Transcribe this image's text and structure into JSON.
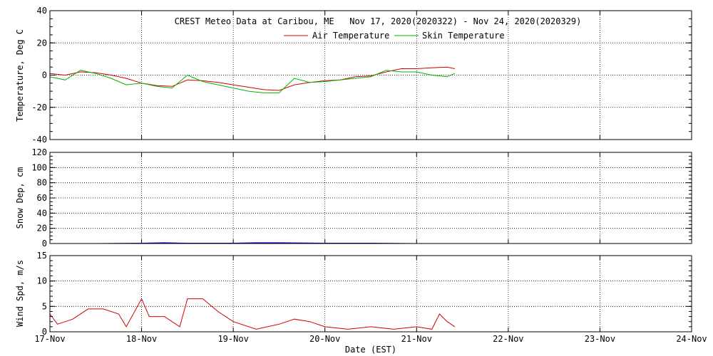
{
  "title": "CREST Meteo Data at Caribou, ME   Nov 17, 2020(2020322) - Nov 24, 2020(2020329)",
  "xlabel": "Date (EST)",
  "colors": {
    "air": "#d40000",
    "skin": "#00b400",
    "snow": "#0000cc",
    "wind": "#d40000"
  },
  "chart_data": [
    {
      "type": "line",
      "title": "CREST Meteo Data at Caribou, ME   Nov 17, 2020(2020322) - Nov 24, 2020(2020329)",
      "xlabel": "",
      "ylabel": "Temperature, Deg C",
      "xlim": [
        "2020-11-17",
        "2020-11-24"
      ],
      "ylim": [
        -40,
        40
      ],
      "yticks": [
        "40",
        "20",
        "0",
        "-20",
        "-40"
      ],
      "legend_position": "top-center",
      "grid": true,
      "series": [
        {
          "name": "Air Temperature",
          "color": "#d40000",
          "x": [
            "2020-11-17 00:00",
            "2020-11-17 04:00",
            "2020-11-17 08:00",
            "2020-11-17 12:00",
            "2020-11-17 16:00",
            "2020-11-17 20:00",
            "2020-11-18 00:00",
            "2020-11-18 04:00",
            "2020-11-18 08:00",
            "2020-11-18 12:00",
            "2020-11-18 16:00",
            "2020-11-18 20:00",
            "2020-11-19 00:00",
            "2020-11-19 04:00",
            "2020-11-19 08:00",
            "2020-11-19 12:00",
            "2020-11-19 16:00",
            "2020-11-19 20:00",
            "2020-11-20 00:00",
            "2020-11-20 04:00",
            "2020-11-20 08:00",
            "2020-11-20 12:00",
            "2020-11-20 16:00",
            "2020-11-20 20:00",
            "2020-11-21 00:00",
            "2020-11-21 04:00",
            "2020-11-21 08:00",
            "2020-11-21 10:00"
          ],
          "y": [
            1,
            0,
            2,
            1.5,
            0,
            -2,
            -5,
            -6.5,
            -7,
            -3,
            -3.5,
            -4.5,
            -6,
            -7.5,
            -9,
            -9.5,
            -6,
            -4.5,
            -3.5,
            -3,
            -1,
            -0.5,
            2,
            4,
            4,
            4.5,
            5,
            4
          ]
        },
        {
          "name": "Skin Temperature",
          "color": "#00b400",
          "x": [
            "2020-11-17 00:00",
            "2020-11-17 04:00",
            "2020-11-17 08:00",
            "2020-11-17 12:00",
            "2020-11-17 16:00",
            "2020-11-17 20:00",
            "2020-11-18 00:00",
            "2020-11-18 04:00",
            "2020-11-18 08:00",
            "2020-11-18 12:00",
            "2020-11-18 16:00",
            "2020-11-18 20:00",
            "2020-11-19 00:00",
            "2020-11-19 04:00",
            "2020-11-19 08:00",
            "2020-11-19 12:00",
            "2020-11-19 16:00",
            "2020-11-19 20:00",
            "2020-11-20 00:00",
            "2020-11-20 04:00",
            "2020-11-20 08:00",
            "2020-11-20 12:00",
            "2020-11-20 16:00",
            "2020-11-20 20:00",
            "2020-11-21 00:00",
            "2020-11-21 04:00",
            "2020-11-21 08:00",
            "2020-11-21 10:00"
          ],
          "y": [
            -1,
            -3,
            3,
            1,
            -2,
            -6,
            -5,
            -7,
            -8,
            0,
            -4,
            -6,
            -8,
            -10,
            -11,
            -11,
            -2,
            -4.5,
            -4,
            -3,
            -2,
            -1,
            3,
            2,
            2,
            0,
            -1,
            1
          ]
        }
      ]
    },
    {
      "type": "area",
      "ylabel": "Snow Dep, cm",
      "xlim": [
        "2020-11-17",
        "2020-11-24"
      ],
      "ylim": [
        0,
        120
      ],
      "yticks": [
        "120",
        "100",
        "80",
        "60",
        "40",
        "20",
        "0"
      ],
      "grid": true,
      "series": [
        {
          "color": "#0000cc",
          "x": [
            "2020-11-17 00:00",
            "2020-11-17 12:00",
            "2020-11-18 00:00",
            "2020-11-18 06:00",
            "2020-11-18 12:00",
            "2020-11-19 00:00",
            "2020-11-19 06:00",
            "2020-11-19 12:00",
            "2020-11-20 00:00",
            "2020-11-20 12:00",
            "2020-11-21 00:00",
            "2020-11-21 10:00"
          ],
          "y": [
            0,
            0,
            0.5,
            1,
            0.5,
            0.5,
            1,
            1,
            0.5,
            0.5,
            0,
            0
          ]
        }
      ]
    },
    {
      "type": "line",
      "ylabel": "Wind Spd, m/s",
      "xlabel": "Date (EST)",
      "xlim": [
        "2020-11-17",
        "2020-11-24"
      ],
      "ylim": [
        0,
        15
      ],
      "yticks": [
        "15",
        "10",
        "5",
        "0"
      ],
      "xticks": [
        "17-Nov",
        "18-Nov",
        "19-Nov",
        "20-Nov",
        "21-Nov",
        "22-Nov",
        "23-Nov",
        "24-Nov"
      ],
      "grid": true,
      "series": [
        {
          "color": "#d40000",
          "x": [
            "2020-11-17 00:00",
            "2020-11-17 02:00",
            "2020-11-17 06:00",
            "2020-11-17 10:00",
            "2020-11-17 14:00",
            "2020-11-17 18:00",
            "2020-11-17 20:00",
            "2020-11-18 00:00",
            "2020-11-18 02:00",
            "2020-11-18 06:00",
            "2020-11-18 10:00",
            "2020-11-18 12:00",
            "2020-11-18 16:00",
            "2020-11-18 20:00",
            "2020-11-19 00:00",
            "2020-11-19 06:00",
            "2020-11-19 12:00",
            "2020-11-19 16:00",
            "2020-11-19 20:00",
            "2020-11-20 00:00",
            "2020-11-20 06:00",
            "2020-11-20 12:00",
            "2020-11-20 18:00",
            "2020-11-21 00:00",
            "2020-11-21 04:00",
            "2020-11-21 06:00",
            "2020-11-21 08:00",
            "2020-11-21 10:00"
          ],
          "y": [
            3.5,
            1.5,
            2.5,
            4.5,
            4.5,
            3.5,
            1,
            6.5,
            3,
            3,
            1,
            6.5,
            6.5,
            4,
            2,
            0.5,
            1.5,
            2.5,
            2,
            1,
            0.5,
            1,
            0.5,
            1,
            0.5,
            3.5,
            2,
            1
          ]
        }
      ]
    }
  ]
}
